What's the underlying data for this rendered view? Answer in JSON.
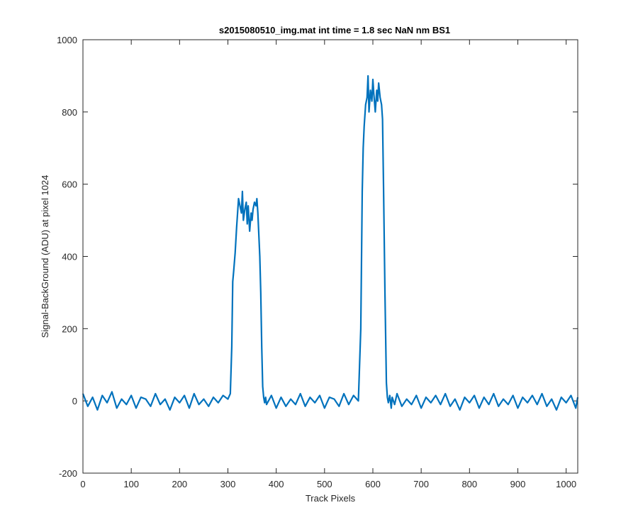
{
  "chart_data": {
    "type": "line",
    "title": "s2015080510_img.mat int time = 1.8 sec  NaN nm BS1",
    "xlabel": "Track Pixels",
    "ylabel": "Signal-BackGround (ADU) at pixel 1024",
    "xlim": [
      0,
      1024
    ],
    "ylim": [
      -200,
      1000
    ],
    "xticks": [
      0,
      100,
      200,
      300,
      400,
      500,
      600,
      700,
      800,
      900,
      1000
    ],
    "yticks": [
      -200,
      0,
      200,
      400,
      600,
      800,
      1000
    ],
    "grid": false,
    "series_color": "#0072bd",
    "series": [
      {
        "x": [
          0,
          10,
          20,
          30,
          40,
          50,
          60,
          70,
          80,
          90,
          100,
          110,
          120,
          130,
          140,
          150,
          160,
          170,
          180,
          190,
          200,
          210,
          220,
          230,
          240,
          250,
          260,
          270,
          280,
          290,
          300,
          305,
          308,
          310,
          312,
          315,
          318,
          320,
          322,
          325,
          328,
          330,
          332,
          335,
          338,
          340,
          342,
          345,
          348,
          350,
          352,
          355,
          358,
          360,
          362,
          364,
          366,
          368,
          370,
          372,
          374,
          376,
          378,
          380,
          390,
          400,
          410,
          420,
          430,
          440,
          450,
          460,
          470,
          480,
          490,
          500,
          510,
          520,
          530,
          540,
          550,
          560,
          570,
          575,
          578,
          580,
          582,
          585,
          588,
          590,
          592,
          595,
          598,
          600,
          602,
          605,
          608,
          610,
          612,
          615,
          618,
          620,
          622,
          625,
          628,
          630,
          632,
          635,
          638,
          640,
          645,
          650,
          660,
          670,
          680,
          690,
          700,
          710,
          720,
          730,
          740,
          750,
          760,
          770,
          780,
          790,
          800,
          810,
          820,
          830,
          840,
          850,
          860,
          870,
          880,
          890,
          900,
          910,
          920,
          930,
          940,
          950,
          960,
          970,
          980,
          990,
          1000,
          1010,
          1020,
          1024
        ],
        "y": [
          20,
          -15,
          10,
          -25,
          15,
          -5,
          25,
          -20,
          5,
          -10,
          15,
          -20,
          10,
          5,
          -15,
          20,
          -10,
          5,
          -25,
          10,
          -5,
          15,
          -20,
          20,
          -10,
          5,
          -15,
          10,
          -5,
          15,
          5,
          20,
          150,
          330,
          360,
          410,
          480,
          520,
          560,
          540,
          520,
          580,
          500,
          530,
          550,
          490,
          540,
          470,
          520,
          500,
          530,
          550,
          540,
          560,
          520,
          460,
          400,
          300,
          150,
          40,
          10,
          -5,
          10,
          -10,
          15,
          -20,
          10,
          -15,
          5,
          -10,
          20,
          -15,
          10,
          -5,
          15,
          -20,
          10,
          5,
          -15,
          20,
          -10,
          15,
          0,
          200,
          580,
          700,
          760,
          820,
          840,
          900,
          800,
          860,
          830,
          890,
          850,
          800,
          860,
          830,
          880,
          840,
          820,
          780,
          600,
          300,
          50,
          10,
          -5,
          15,
          -20,
          10,
          -10,
          20,
          -15,
          5,
          -10,
          15,
          -20,
          10,
          -5,
          15,
          -10,
          20,
          -15,
          5,
          -25,
          10,
          -5,
          15,
          -20,
          10,
          -10,
          20,
          -15,
          5,
          -10,
          15,
          -20,
          10,
          -5,
          15,
          -10,
          20,
          -15,
          5,
          -25,
          10,
          -5,
          15,
          -20,
          10
        ]
      }
    ]
  }
}
